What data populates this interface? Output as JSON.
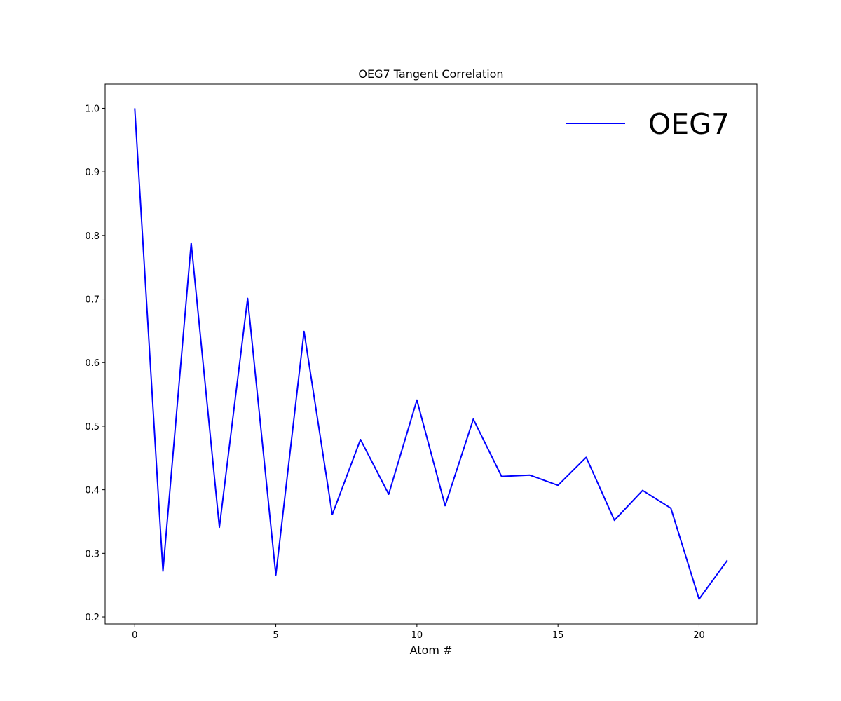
{
  "chart_data": {
    "type": "line",
    "title": "OEG7 Tangent Correlation",
    "xlabel": "Atom #",
    "ylabel": "",
    "xlim": [
      -1.05,
      22.05
    ],
    "ylim": [
      0.189,
      1.038
    ],
    "xticks": [
      0,
      5,
      10,
      15,
      20
    ],
    "xtick_labels": [
      "0",
      "5",
      "10",
      "15",
      "20"
    ],
    "yticks": [
      0.2,
      0.3,
      0.4,
      0.5,
      0.6,
      0.7,
      0.8,
      0.9,
      1.0
    ],
    "ytick_labels": [
      "0.2",
      "0.3",
      "0.4",
      "0.5",
      "0.6",
      "0.7",
      "0.8",
      "0.9",
      "1.0"
    ],
    "grid": false,
    "legend_position": "top-right",
    "series": [
      {
        "name": "OEG7",
        "color": "#0000ff",
        "x": [
          0,
          1,
          2,
          3,
          4,
          5,
          6,
          7,
          8,
          9,
          10,
          11,
          12,
          13,
          14,
          15,
          16,
          17,
          18,
          19,
          20,
          21
        ],
        "y": [
          1.0,
          0.272,
          0.788,
          0.341,
          0.701,
          0.266,
          0.649,
          0.361,
          0.479,
          0.393,
          0.541,
          0.375,
          0.511,
          0.421,
          0.423,
          0.407,
          0.451,
          0.352,
          0.399,
          0.371,
          0.228,
          0.289
        ]
      }
    ]
  }
}
